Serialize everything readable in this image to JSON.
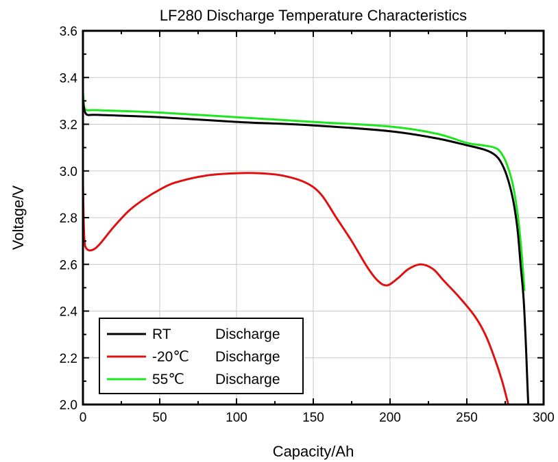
{
  "chart_data": {
    "type": "line",
    "title": "LF280 Discharge Temperature Characteristics",
    "xlabel": "Capacity/Ah",
    "ylabel": "Voltage/V",
    "xlim": [
      0,
      300
    ],
    "ylim": [
      2.0,
      3.6
    ],
    "xticks": [
      "0",
      "50",
      "100",
      "150",
      "200",
      "250",
      "300"
    ],
    "yticks": [
      "2.0",
      "2.2",
      "2.4",
      "2.6",
      "2.8",
      "3.0",
      "3.2",
      "3.4",
      "3.6"
    ],
    "grid": true,
    "legend_position": "bottom-left",
    "series": [
      {
        "name": "RT",
        "label": "Discharge",
        "color": "#000000",
        "points": [
          [
            0,
            3.3
          ],
          [
            1,
            3.26
          ],
          [
            3,
            3.24
          ],
          [
            10,
            3.24
          ],
          [
            50,
            3.23
          ],
          [
            100,
            3.21
          ],
          [
            150,
            3.195
          ],
          [
            200,
            3.17
          ],
          [
            230,
            3.14
          ],
          [
            250,
            3.11
          ],
          [
            262,
            3.09
          ],
          [
            268,
            3.07
          ],
          [
            272,
            3.04
          ],
          [
            276,
            2.98
          ],
          [
            280,
            2.88
          ],
          [
            283,
            2.75
          ],
          [
            285,
            2.6
          ],
          [
            287,
            2.45
          ],
          [
            288.5,
            2.25
          ],
          [
            289.5,
            2.08
          ],
          [
            290,
            2.0
          ]
        ]
      },
      {
        "name": "-20℃",
        "label": "Discharge",
        "color": "#e01010",
        "points": [
          [
            0,
            2.95
          ],
          [
            0.5,
            2.78
          ],
          [
            1,
            2.7
          ],
          [
            2,
            2.67
          ],
          [
            5,
            2.66
          ],
          [
            10,
            2.68
          ],
          [
            20,
            2.76
          ],
          [
            30,
            2.83
          ],
          [
            40,
            2.88
          ],
          [
            50,
            2.92
          ],
          [
            60,
            2.95
          ],
          [
            80,
            2.98
          ],
          [
            100,
            2.99
          ],
          [
            115,
            2.99
          ],
          [
            130,
            2.98
          ],
          [
            145,
            2.95
          ],
          [
            155,
            2.9
          ],
          [
            165,
            2.8
          ],
          [
            175,
            2.7
          ],
          [
            185,
            2.59
          ],
          [
            192,
            2.53
          ],
          [
            198,
            2.51
          ],
          [
            205,
            2.54
          ],
          [
            212,
            2.58
          ],
          [
            220,
            2.6
          ],
          [
            228,
            2.58
          ],
          [
            235,
            2.53
          ],
          [
            245,
            2.46
          ],
          [
            255,
            2.38
          ],
          [
            262,
            2.3
          ],
          [
            268,
            2.2
          ],
          [
            273,
            2.1
          ],
          [
            277,
            2.0
          ]
        ]
      },
      {
        "name": "55℃",
        "label": "Discharge",
        "color": "#1ee61e",
        "points": [
          [
            0,
            3.34
          ],
          [
            0.5,
            3.3
          ],
          [
            1,
            3.27
          ],
          [
            3,
            3.26
          ],
          [
            10,
            3.26
          ],
          [
            50,
            3.25
          ],
          [
            100,
            3.23
          ],
          [
            150,
            3.21
          ],
          [
            200,
            3.19
          ],
          [
            230,
            3.16
          ],
          [
            250,
            3.12
          ],
          [
            260,
            3.11
          ],
          [
            268,
            3.1
          ],
          [
            272,
            3.08
          ],
          [
            276,
            3.03
          ],
          [
            280,
            2.94
          ],
          [
            283,
            2.82
          ],
          [
            285,
            2.7
          ],
          [
            286.5,
            2.58
          ],
          [
            287.5,
            2.49
          ]
        ]
      }
    ]
  }
}
